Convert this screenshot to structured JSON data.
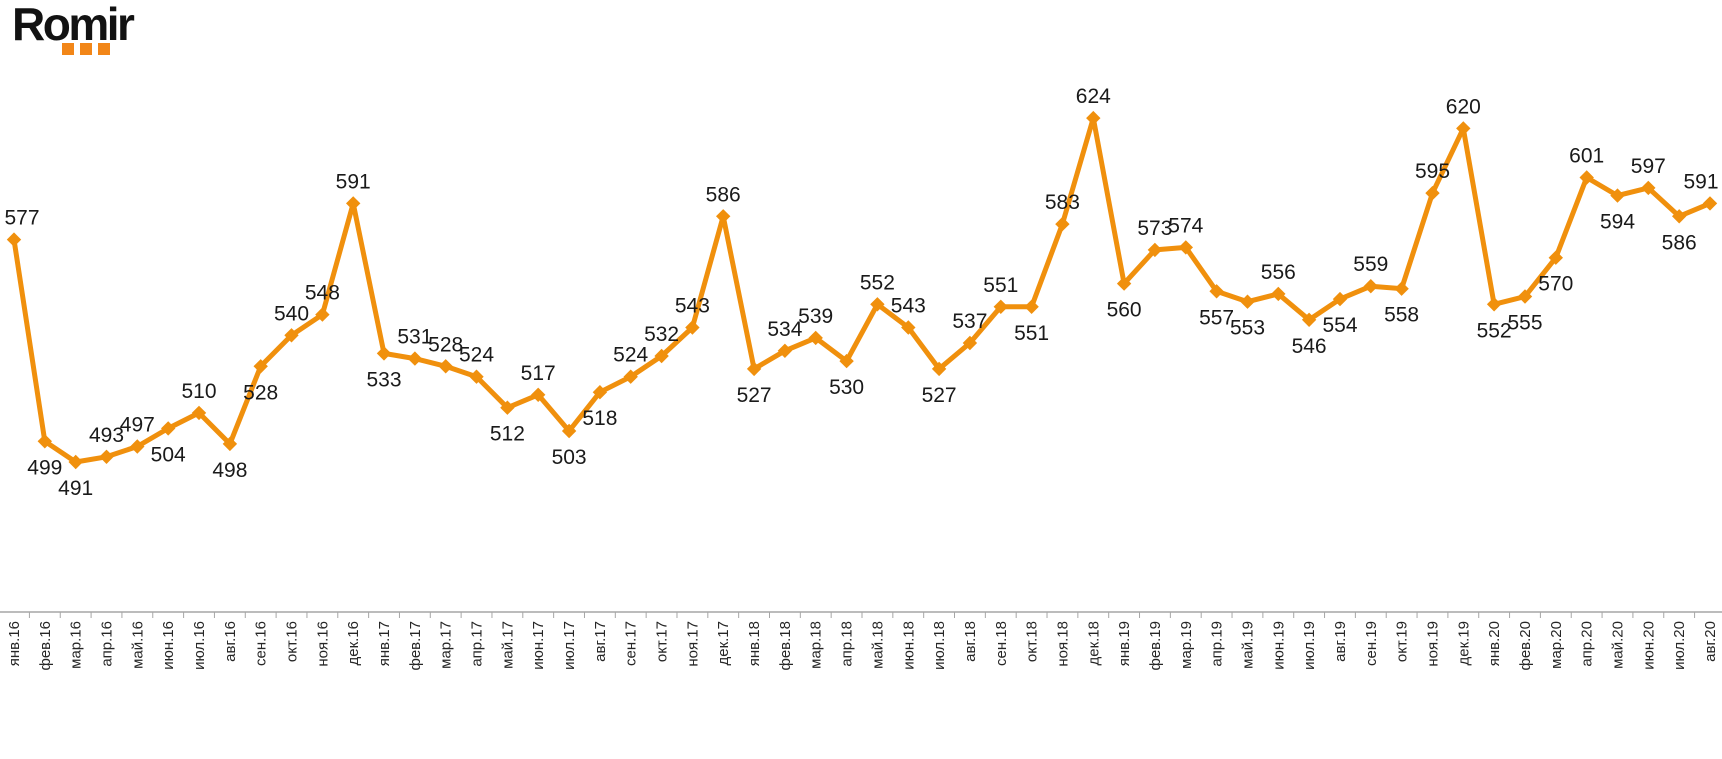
{
  "logo": {
    "text": "Romir",
    "dots_color": "#F28618"
  },
  "chart_data": {
    "type": "line",
    "title": "",
    "xlabel": "",
    "ylabel": "",
    "categories": [
      "янв.16",
      "фев.16",
      "мар.16",
      "апр.16",
      "май.16",
      "июн.16",
      "июл.16",
      "авг.16",
      "сен.16",
      "окт.16",
      "ноя.16",
      "дек.16",
      "янв.17",
      "фев.17",
      "мар.17",
      "апр.17",
      "май.17",
      "июн.17",
      "июл.17",
      "авг.17",
      "сен.17",
      "окт.17",
      "ноя.17",
      "дек.17",
      "янв.18",
      "фев.18",
      "мар.18",
      "апр.18",
      "май.18",
      "июн.18",
      "июл.18",
      "авг.18",
      "сен.18",
      "окт.18",
      "ноя.18",
      "дек.18",
      "янв.19",
      "фев.19",
      "мар.19",
      "апр.19",
      "май.19",
      "июн.19",
      "июл.19",
      "авг.19",
      "сен.19",
      "окт.19",
      "ноя.19",
      "дек.19",
      "янв.20",
      "фев.20",
      "мар.20",
      "апр.20",
      "май.20",
      "июн.20",
      "июл.20",
      "авг.20"
    ],
    "values": [
      577,
      499,
      491,
      493,
      497,
      504,
      510,
      498,
      528,
      540,
      548,
      591,
      533,
      531,
      528,
      524,
      512,
      517,
      503,
      518,
      524,
      532,
      543,
      586,
      527,
      534,
      539,
      530,
      552,
      543,
      527,
      537,
      551,
      551,
      583,
      624,
      560,
      573,
      574,
      557,
      553,
      556,
      546,
      554,
      559,
      558,
      595,
      620,
      552,
      555,
      570,
      601,
      594,
      597,
      586,
      591
    ],
    "label_positions": [
      "above",
      "below",
      "below",
      "above",
      "above",
      "below",
      "above",
      "below",
      "below",
      "above",
      "above",
      "above",
      "below",
      "above",
      "above",
      "above",
      "below",
      "above",
      "below",
      "below",
      "above",
      "above",
      "above",
      "above",
      "below",
      "above",
      "above",
      "below",
      "above",
      "above",
      "below",
      "above",
      "above",
      "below",
      "above",
      "above",
      "below",
      "above",
      "above",
      "below",
      "below",
      "above",
      "below",
      "below",
      "above",
      "below",
      "above",
      "above",
      "below",
      "below",
      "below",
      "above",
      "below",
      "above",
      "below",
      "above"
    ],
    "ylim": [
      483,
      632
    ],
    "grid": false,
    "legend": "none",
    "marker": "diamond",
    "line_color": "#F0900D",
    "value_label_color": "#1A1A1A",
    "axis_color": "#A6A6A6",
    "tick_label_color": "#262626",
    "x_tick_rotation": -90
  }
}
